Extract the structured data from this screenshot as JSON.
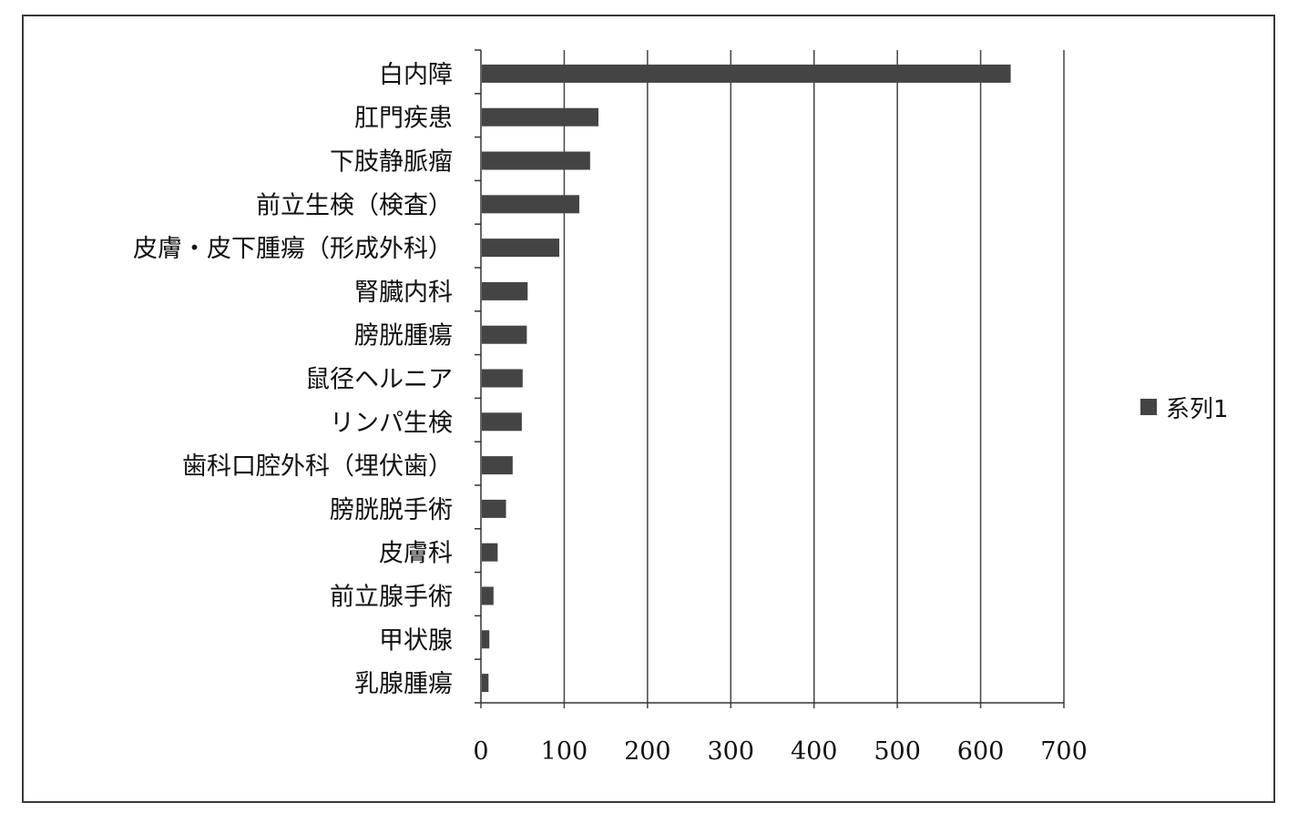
{
  "chart_data": {
    "type": "bar",
    "orientation": "horizontal",
    "categories": [
      "白内障",
      "肛門疾患",
      "下肢静脈瘤",
      "前立生検（検査）",
      "皮膚・皮下腫瘍（形成外科）",
      "腎臓内科",
      "膀胱腫瘍",
      "鼠径ヘルニア",
      "リンパ生検",
      "歯科口腔外科（埋伏歯）",
      "膀胱脱手術",
      "皮膚科",
      "前立腺手術",
      "甲状腺",
      "乳腺腫瘍"
    ],
    "series": [
      {
        "name": "系列1",
        "values": [
          635,
          140,
          130,
          117,
          93,
          55,
          54,
          49,
          48,
          37,
          29,
          19,
          14,
          9,
          8
        ]
      }
    ],
    "xlim": [
      0,
      700
    ],
    "xticks": [
      "0",
      "100",
      "200",
      "300",
      "400",
      "500",
      "600",
      "700"
    ],
    "grid": "vertical",
    "legend": "right",
    "bar_color": "#444444"
  }
}
